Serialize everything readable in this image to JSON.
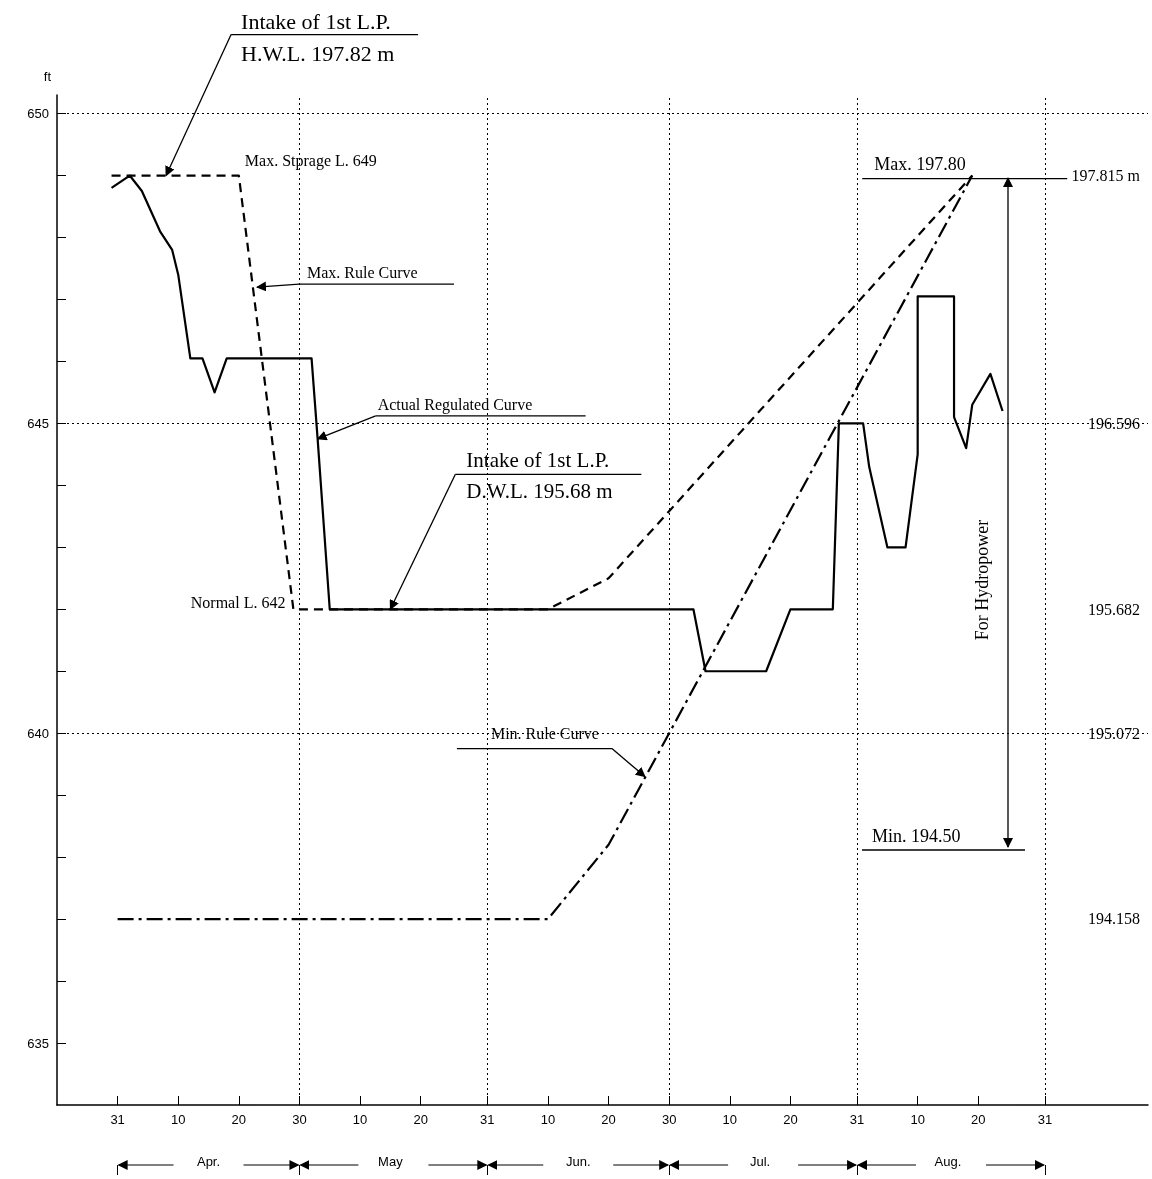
{
  "chart_data": {
    "type": "line",
    "ylabel": "ft",
    "xlim": [
      "--03-21",
      "--09-17"
    ],
    "xticks": [
      {
        "value": "--03-31",
        "label": "31"
      },
      {
        "value": "--04-10",
        "label": "10"
      },
      {
        "value": "--04-20",
        "label": "20"
      },
      {
        "value": "--04-30",
        "label": "30"
      },
      {
        "value": "--05-10",
        "label": "10"
      },
      {
        "value": "--05-20",
        "label": "20"
      },
      {
        "value": "--05-31",
        "label": "31"
      },
      {
        "value": "--06-10",
        "label": "10"
      },
      {
        "value": "--06-20",
        "label": "20"
      },
      {
        "value": "--06-30",
        "label": "30"
      },
      {
        "value": "--07-10",
        "label": "10"
      },
      {
        "value": "--07-20",
        "label": "20"
      },
      {
        "value": "--07-31",
        "label": "31"
      },
      {
        "value": "--08-10",
        "label": "10"
      },
      {
        "value": "--08-20",
        "label": "20"
      },
      {
        "value": "--08-31",
        "label": "31"
      }
    ],
    "x2lim": [
      "--03-21",
      "--09-17"
    ],
    "x2ticks": [
      {
        "value": "--03-31",
        "label": null
      },
      {
        "value": "--04-15",
        "label": "Apr."
      },
      {
        "value": "--04-30",
        "label": null
      },
      {
        "value": "--05-15",
        "label": "May"
      },
      {
        "value": "--05-31",
        "label": null
      },
      {
        "value": "--06-15",
        "label": "Jun."
      },
      {
        "value": "--06-30",
        "label": null
      },
      {
        "value": "--07-15",
        "label": "Jul."
      },
      {
        "value": "--07-31",
        "label": null
      },
      {
        "value": "--08-15",
        "label": "Aug."
      },
      {
        "value": "--08-31",
        "label": null
      }
    ],
    "ylim": [
      634,
      650.3
    ],
    "yticks": [
      635,
      {
        "value": 636,
        "label": null
      },
      {
        "value": 637,
        "label": null
      },
      {
        "value": 638,
        "label": null
      },
      {
        "value": 639,
        "label": null
      },
      640,
      {
        "value": 641,
        "label": null
      },
      {
        "value": 642,
        "label": null
      },
      {
        "value": 643,
        "label": null
      },
      {
        "value": 644,
        "label": null
      },
      645,
      {
        "value": 646,
        "label": null
      },
      {
        "value": 647,
        "label": null
      },
      {
        "value": 648,
        "label": null
      },
      {
        "value": 649,
        "label": null
      },
      650
    ],
    "y2lim": [
      193.243,
      198.211
    ],
    "y2ticks": [
      {
        "value": 197.815,
        "label": "197.815 m"
      },
      {
        "value": 196.596,
        "label": "196.596"
      },
      {
        "value": 195.682,
        "label": "195.682"
      },
      {
        "value": 195.072,
        "label": "195.072"
      },
      {
        "value": 194.158,
        "label": "194.158"
      }
    ],
    "grid": false,
    "marker": "none",
    "series": [
      {
        "color": "#000000",
        "line_style": "solid",
        "x": [
          "--03-30",
          "--04-02",
          "--04-04",
          "--04-07",
          "--04-09",
          "--04-10",
          "--04-12",
          "--04-14",
          "--04-16",
          "--04-18",
          "--05-02",
          "--05-03",
          "--05-05",
          "--07-04",
          "--07-06",
          "--07-16",
          "--07-20",
          "--07-27",
          "--07-28",
          "--08-01",
          "--08-02",
          "--08-05",
          "--08-08",
          "--08-10",
          "--08-10",
          "--08-16",
          "--08-16",
          "--08-18",
          "--08-19",
          "--08-22",
          "--08-24"
        ],
        "values": [
          648.8,
          649.0,
          648.75,
          648.1,
          647.8,
          647.4,
          646.05,
          646.05,
          645.5,
          646.05,
          646.05,
          644.75,
          642.0,
          642.0,
          641.0,
          641.0,
          642.0,
          642.0,
          645.0,
          645.0,
          644.3,
          643.0,
          643.0,
          644.5,
          647.05,
          647.05,
          645.1,
          644.6,
          645.3,
          645.8,
          645.2
        ]
      },
      {
        "color": "#000000",
        "line_style": "dashed",
        "x": [
          "--03-30",
          "--04-20",
          "--04-29",
          "--06-10",
          "--06-20",
          "--08-19"
        ],
        "values": [
          649,
          649,
          642,
          642,
          642.5,
          649
        ]
      },
      {
        "color": "#000000",
        "line_style": "dashdot",
        "x": [
          "--03-31",
          "--06-10",
          "--06-20",
          "--08-19"
        ],
        "values": [
          637,
          637,
          638.2,
          649
        ]
      }
    ],
    "ref_lines": [
      {
        "axis": "y",
        "value": 650,
        "color": "#000000",
        "line_style": "dotted"
      },
      {
        "axis": "y",
        "value": 645,
        "color": "#000000",
        "line_style": "dotted"
      },
      {
        "axis": "y",
        "value": 640,
        "color": "#000000",
        "line_style": "dotted"
      },
      {
        "axis": "x",
        "value": "--04-30",
        "color": "#000000",
        "line_style": "dotted"
      },
      {
        "axis": "x",
        "value": "--05-31",
        "color": "#000000",
        "line_style": "dotted"
      },
      {
        "axis": "x",
        "value": "--06-30",
        "color": "#000000",
        "line_style": "dotted"
      },
      {
        "axis": "x",
        "value": "--07-31",
        "color": "#000000",
        "line_style": "dotted"
      },
      {
        "axis": "x",
        "value": "--08-31",
        "color": "#000000",
        "line_style": "dotted"
      }
    ],
    "annotations": [
      {
        "text": "Intake of 1st L.P.\nH.W.L. 197.82 m",
        "x": "--04-08",
        "y": 649
      },
      {
        "text": "Max. Stprage L. 649",
        "x": "--04-20",
        "y": 649
      },
      {
        "text": "Max. Rule Curve",
        "x": "--04-23",
        "y": 647.2
      },
      {
        "text": "Actual Regulated Curve",
        "x": "--05-03",
        "y": 644.75
      },
      {
        "text": "Intake of 1st L.P.\nD.W.L. 195.68 m",
        "x": "--05-15",
        "y": 642
      },
      {
        "text": "Normal L. 642",
        "x": "--04-30",
        "y": 642
      },
      {
        "text": "Min. Rule Curve",
        "x": "--06-26",
        "y": 639.3
      },
      {
        "text": "Max. 197.80",
        "x": "--08-19",
        "y": 649
      },
      "Min. 194.50",
      "For Hydropower"
    ]
  }
}
